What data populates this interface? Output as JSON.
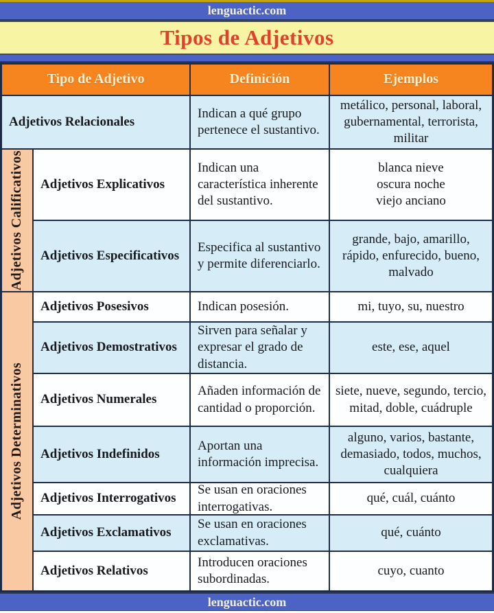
{
  "site": {
    "top_banner": "lenguactic.com",
    "bottom_banner": "lenguactic.com"
  },
  "title": "Tipos de Adjetivos",
  "colors": {
    "banner_blue": "#4a63c4",
    "title_band_yellow": "#f7f4a4",
    "title_red": "#e2402c",
    "header_orange": "#f6841f",
    "row_light_blue": "#d6edf8",
    "row_white": "#fdfeff",
    "group_peach": "#f8c9a2",
    "border_navy": "#1e2b46",
    "gold_line": "#c3a40b"
  },
  "table": {
    "headers": [
      "Tipo de Adjetivo",
      "Definición",
      "Ejemplos"
    ],
    "groups": [
      {
        "label": "Adjetivos Calificativos",
        "rows": [
          "Adjetivos Explicativos",
          "Adjetivos Especificativos"
        ]
      },
      {
        "label": "Adjetivos Determinativos",
        "rows": [
          "Adjetivos Posesivos",
          "Adjetivos Demostrativos",
          "Adjetivos Numerales",
          "Adjetivos Indefinidos",
          "Adjetivos Interrogativos",
          "Adjetivos Exclamativos",
          "Adjetivos Relativos"
        ]
      }
    ],
    "rows": [
      {
        "type": "Adjetivos Relacionales",
        "definition": "Indican a qué grupo pertenece el sustantivo.",
        "examples": "metálico, personal, laboral, gubernamental, terrorista, militar"
      },
      {
        "type": "Adjetivos Explicativos",
        "definition": "Indican una característica inherente del sustantivo.",
        "examples": [
          "blanca nieve",
          "oscura noche",
          "viejo anciano"
        ]
      },
      {
        "type": "Adjetivos Especificativos",
        "definition": "Especifica al sustantivo y permite diferenciarlo.",
        "examples": "grande, bajo, amarillo, rápido, enfurecido, bueno, malvado"
      },
      {
        "type": "Adjetivos Posesivos",
        "definition": "Indican posesión.",
        "examples": "mi, tuyo, su, nuestro"
      },
      {
        "type": "Adjetivos Demostrativos",
        "definition": "Sirven para señalar y expresar el grado de distancia.",
        "examples": "este, ese, aquel"
      },
      {
        "type": "Adjetivos Numerales",
        "definition": "Añaden información de cantidad o proporción.",
        "examples": "siete, nueve, segundo, tercio, mitad, doble, cuádruple"
      },
      {
        "type": "Adjetivos Indefinidos",
        "definition": "Aportan una información imprecisa.",
        "examples": "alguno, varios, bastante, demasiado, todos, muchos, cualquiera"
      },
      {
        "type": "Adjetivos Interrogativos",
        "definition": "Se usan en oraciones interrogativas.",
        "examples": "qué, cuál, cuánto"
      },
      {
        "type": "Adjetivos Exclamativos",
        "definition": "Se usan en oraciones exclamativas.",
        "examples": "qué, cuánto"
      },
      {
        "type": "Adjetivos Relativos",
        "definition": "Introducen oraciones subordinadas.",
        "examples": "cuyo, cuanto"
      }
    ]
  }
}
